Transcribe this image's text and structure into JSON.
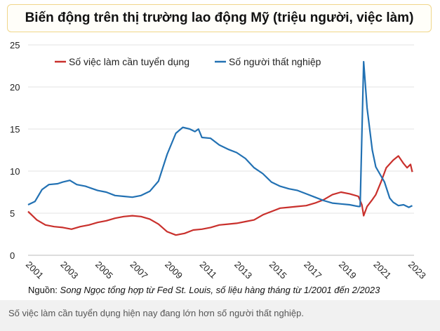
{
  "header": {
    "title": "Biến động trên thị trường lao động Mỹ (triệu người, việc làm)"
  },
  "source": {
    "prefix": "Nguồn: ",
    "text": "Song Ngọc tổng hợp từ Fed St. Louis, số liệu hàng tháng từ 1/2001 đến 2/2023"
  },
  "caption": "Số việc làm cần tuyển dụng hiện nay đang lớn hơn số người thất nghiệp.",
  "colors": {
    "openings": "#c9302c",
    "unemployed": "#2271b3"
  },
  "chart_data": {
    "type": "line",
    "title": "Biến động trên thị trường lao động Mỹ (triệu người, việc làm)",
    "xlim": [
      2001,
      2023.2
    ],
    "ylim": [
      0,
      25
    ],
    "yticks": [
      0,
      5,
      10,
      15,
      20,
      25
    ],
    "xticks": [
      "2001",
      "2003",
      "2005",
      "2007",
      "2009",
      "2011",
      "2013",
      "2015",
      "2017",
      "2019",
      "2021",
      "2023"
    ],
    "legend": "top-left",
    "series": [
      {
        "name": "Số việc làm cần tuyển dụng",
        "color": "#c9302c",
        "points": [
          [
            2001.0,
            5.2
          ],
          [
            2001.5,
            4.2
          ],
          [
            2002.0,
            3.6
          ],
          [
            2002.5,
            3.4
          ],
          [
            2003.0,
            3.3
          ],
          [
            2003.5,
            3.1
          ],
          [
            2004.0,
            3.4
          ],
          [
            2004.5,
            3.6
          ],
          [
            2005.0,
            3.9
          ],
          [
            2005.5,
            4.1
          ],
          [
            2006.0,
            4.4
          ],
          [
            2006.5,
            4.6
          ],
          [
            2007.0,
            4.7
          ],
          [
            2007.5,
            4.6
          ],
          [
            2008.0,
            4.3
          ],
          [
            2008.5,
            3.7
          ],
          [
            2009.0,
            2.8
          ],
          [
            2009.5,
            2.4
          ],
          [
            2010.0,
            2.6
          ],
          [
            2010.5,
            3.0
          ],
          [
            2011.0,
            3.1
          ],
          [
            2011.5,
            3.3
          ],
          [
            2012.0,
            3.6
          ],
          [
            2012.5,
            3.7
          ],
          [
            2013.0,
            3.8
          ],
          [
            2013.5,
            4.0
          ],
          [
            2014.0,
            4.2
          ],
          [
            2014.5,
            4.8
          ],
          [
            2015.0,
            5.2
          ],
          [
            2015.5,
            5.6
          ],
          [
            2016.0,
            5.7
          ],
          [
            2016.5,
            5.8
          ],
          [
            2017.0,
            5.9
          ],
          [
            2017.5,
            6.2
          ],
          [
            2018.0,
            6.6
          ],
          [
            2018.5,
            7.2
          ],
          [
            2019.0,
            7.5
          ],
          [
            2019.5,
            7.3
          ],
          [
            2020.0,
            7.0
          ],
          [
            2020.2,
            6.0
          ],
          [
            2020.3,
            4.7
          ],
          [
            2020.5,
            5.8
          ],
          [
            2020.8,
            6.6
          ],
          [
            2021.0,
            7.2
          ],
          [
            2021.3,
            8.7
          ],
          [
            2021.6,
            10.4
          ],
          [
            2022.0,
            11.3
          ],
          [
            2022.3,
            11.8
          ],
          [
            2022.6,
            10.9
          ],
          [
            2022.8,
            10.4
          ],
          [
            2023.0,
            10.8
          ],
          [
            2023.1,
            9.9
          ]
        ]
      },
      {
        "name": "Số người thất nghiệp",
        "color": "#2271b3",
        "points": [
          [
            2001.0,
            6.0
          ],
          [
            2001.4,
            6.4
          ],
          [
            2001.8,
            7.8
          ],
          [
            2002.2,
            8.4
          ],
          [
            2002.7,
            8.5
          ],
          [
            2003.0,
            8.7
          ],
          [
            2003.4,
            8.9
          ],
          [
            2003.8,
            8.4
          ],
          [
            2004.3,
            8.2
          ],
          [
            2005.0,
            7.7
          ],
          [
            2005.5,
            7.5
          ],
          [
            2006.0,
            7.1
          ],
          [
            2006.5,
            7.0
          ],
          [
            2007.0,
            6.9
          ],
          [
            2007.5,
            7.1
          ],
          [
            2008.0,
            7.6
          ],
          [
            2008.5,
            8.8
          ],
          [
            2009.0,
            12.0
          ],
          [
            2009.5,
            14.5
          ],
          [
            2009.9,
            15.2
          ],
          [
            2010.3,
            15.0
          ],
          [
            2010.6,
            14.7
          ],
          [
            2010.8,
            15.0
          ],
          [
            2011.0,
            14.0
          ],
          [
            2011.5,
            13.9
          ],
          [
            2012.0,
            13.1
          ],
          [
            2012.5,
            12.6
          ],
          [
            2013.0,
            12.2
          ],
          [
            2013.5,
            11.5
          ],
          [
            2014.0,
            10.4
          ],
          [
            2014.5,
            9.7
          ],
          [
            2015.0,
            8.7
          ],
          [
            2015.5,
            8.2
          ],
          [
            2016.0,
            7.9
          ],
          [
            2016.5,
            7.7
          ],
          [
            2017.0,
            7.3
          ],
          [
            2017.5,
            6.9
          ],
          [
            2018.0,
            6.5
          ],
          [
            2018.5,
            6.2
          ],
          [
            2019.0,
            6.1
          ],
          [
            2019.5,
            6.0
          ],
          [
            2020.0,
            5.8
          ],
          [
            2020.1,
            5.8
          ],
          [
            2020.3,
            23.0
          ],
          [
            2020.5,
            17.5
          ],
          [
            2020.8,
            12.5
          ],
          [
            2021.0,
            10.5
          ],
          [
            2021.5,
            8.7
          ],
          [
            2021.8,
            6.8
          ],
          [
            2022.0,
            6.3
          ],
          [
            2022.3,
            5.9
          ],
          [
            2022.6,
            6.0
          ],
          [
            2022.9,
            5.7
          ],
          [
            2023.1,
            5.9
          ]
        ]
      }
    ]
  }
}
